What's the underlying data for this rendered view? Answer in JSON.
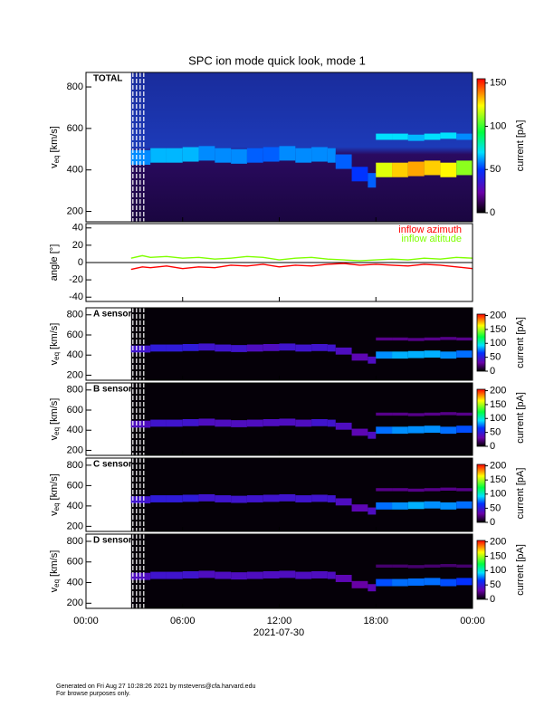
{
  "title": "SPC ion mode quick look, mode 1",
  "xaxis": {
    "label": "2021-07-30",
    "xlim": [
      0,
      24
    ],
    "xticks": [
      {
        "value": 0,
        "label": "00:00"
      },
      {
        "value": 6,
        "label": "06:00"
      },
      {
        "value": 12,
        "label": "12:00"
      },
      {
        "value": 18,
        "label": "18:00"
      },
      {
        "value": 24,
        "label": "00:00"
      }
    ]
  },
  "chart_data": [
    {
      "type": "spectrogram",
      "name": "TOTAL",
      "ylabel": {
        "main": "v",
        "sub": "eq",
        "unit": "[km/s]"
      },
      "ylim": [
        150,
        870
      ],
      "yticks": [
        200,
        400,
        600,
        800
      ],
      "colorbar_label": "current [pA]",
      "clim": [
        0,
        155
      ],
      "cticks": [
        0,
        50,
        100,
        150
      ],
      "x": [
        2.8,
        4,
        5,
        6,
        7,
        8,
        9,
        10,
        11,
        12,
        13,
        14,
        15,
        15.5,
        16.5,
        17.5,
        18,
        19,
        20,
        21,
        22,
        23
      ],
      "peak_speed": [
        460,
        470,
        470,
        475,
        480,
        470,
        465,
        470,
        475,
        480,
        470,
        475,
        470,
        440,
        380,
        350,
        400,
        400,
        405,
        410,
        400,
        410
      ],
      "peak_current": [
        60,
        65,
        65,
        65,
        60,
        60,
        60,
        55,
        55,
        60,
        60,
        60,
        60,
        55,
        50,
        55,
        120,
        130,
        135,
        130,
        125,
        110
      ],
      "secondary_speed": [
        null,
        null,
        null,
        null,
        null,
        null,
        null,
        null,
        null,
        null,
        null,
        null,
        null,
        null,
        null,
        null,
        560,
        560,
        555,
        560,
        565,
        560
      ],
      "secondary_current": [
        null,
        null,
        null,
        null,
        null,
        null,
        null,
        null,
        null,
        null,
        null,
        null,
        null,
        null,
        null,
        null,
        70,
        70,
        65,
        70,
        70,
        60
      ]
    },
    {
      "type": "line",
      "ylabel": "angle [°]",
      "ylim": [
        -45,
        45
      ],
      "yticks": [
        -40,
        -20,
        0,
        20,
        40
      ],
      "x": [
        2.8,
        3.5,
        4,
        5,
        6,
        7,
        8,
        9,
        10,
        11,
        12,
        13,
        14,
        15,
        16,
        17,
        18,
        19,
        20,
        21,
        22,
        23,
        24
      ],
      "series": [
        {
          "name": "inflow azimuth",
          "color": "#ff0000",
          "values": [
            -8,
            -5,
            -6,
            -4,
            -7,
            -5,
            -6,
            -3,
            -4,
            -2,
            -5,
            -3,
            -4,
            -2,
            -1,
            -3,
            -2,
            -3,
            -4,
            -2,
            -3,
            -5,
            -7
          ]
        },
        {
          "name": "inflow altitude",
          "color": "#7fff00",
          "values": [
            5,
            8,
            6,
            7,
            5,
            6,
            4,
            5,
            7,
            6,
            3,
            5,
            6,
            4,
            3,
            2,
            3,
            4,
            3,
            5,
            4,
            6,
            5
          ]
        }
      ]
    },
    {
      "type": "spectrogram",
      "name": "A sensor",
      "ylabel": {
        "main": "v",
        "sub": "eq",
        "unit": "[km/s]"
      },
      "ylim": [
        150,
        870
      ],
      "yticks": [
        200,
        400,
        600,
        800
      ],
      "colorbar_label": "current [pA]",
      "clim": [
        0,
        205
      ],
      "cticks": [
        0,
        50,
        100,
        150,
        200
      ],
      "x": [
        2.8,
        4,
        5,
        6,
        7,
        8,
        9,
        10,
        11,
        12,
        13,
        14,
        15,
        15.5,
        16.5,
        17.5,
        18,
        19,
        20,
        21,
        22,
        23
      ],
      "peak_speed": [
        460,
        470,
        470,
        475,
        480,
        470,
        465,
        470,
        475,
        480,
        470,
        475,
        470,
        440,
        380,
        350,
        400,
        400,
        405,
        410,
        400,
        410
      ],
      "peak_current": [
        45,
        50,
        50,
        50,
        45,
        45,
        45,
        40,
        40,
        45,
        45,
        45,
        45,
        40,
        35,
        40,
        80,
        85,
        85,
        85,
        80,
        75
      ],
      "secondary_speed": [
        null,
        null,
        null,
        null,
        null,
        null,
        null,
        null,
        null,
        null,
        null,
        null,
        null,
        null,
        null,
        null,
        560,
        560,
        555,
        560,
        565,
        560
      ],
      "secondary_current": [
        null,
        null,
        null,
        null,
        null,
        null,
        null,
        null,
        null,
        null,
        null,
        null,
        null,
        null,
        null,
        null,
        25,
        25,
        25,
        25,
        25,
        25
      ]
    },
    {
      "type": "spectrogram",
      "name": "B sensor",
      "ylabel": {
        "main": "v",
        "sub": "eq",
        "unit": "[km/s]"
      },
      "ylim": [
        150,
        870
      ],
      "yticks": [
        200,
        400,
        600,
        800
      ],
      "colorbar_label": "current [pA]",
      "clim": [
        0,
        205
      ],
      "cticks": [
        0,
        50,
        100,
        150,
        200
      ],
      "x": [
        2.8,
        4,
        5,
        6,
        7,
        8,
        9,
        10,
        11,
        12,
        13,
        14,
        15,
        15.5,
        16.5,
        17.5,
        18,
        19,
        20,
        21,
        22,
        23
      ],
      "peak_speed": [
        460,
        470,
        470,
        475,
        480,
        470,
        465,
        470,
        475,
        480,
        470,
        475,
        470,
        440,
        380,
        350,
        400,
        400,
        405,
        410,
        400,
        410
      ],
      "peak_current": [
        40,
        45,
        45,
        45,
        40,
        40,
        40,
        40,
        40,
        40,
        40,
        45,
        45,
        40,
        35,
        40,
        75,
        80,
        80,
        80,
        75,
        70
      ],
      "secondary_speed": [
        null,
        null,
        null,
        null,
        null,
        null,
        null,
        null,
        null,
        null,
        null,
        null,
        null,
        null,
        null,
        null,
        560,
        560,
        555,
        560,
        565,
        560
      ],
      "secondary_current": [
        null,
        null,
        null,
        null,
        null,
        null,
        null,
        null,
        null,
        null,
        null,
        null,
        null,
        null,
        null,
        null,
        25,
        25,
        25,
        25,
        25,
        25
      ]
    },
    {
      "type": "spectrogram",
      "name": "C sensor",
      "ylabel": {
        "main": "v",
        "sub": "eq",
        "unit": "[km/s]"
      },
      "ylim": [
        150,
        870
      ],
      "yticks": [
        200,
        400,
        600,
        800
      ],
      "colorbar_label": "current [pA]",
      "clim": [
        0,
        205
      ],
      "cticks": [
        0,
        50,
        100,
        150,
        200
      ],
      "x": [
        2.8,
        4,
        5,
        6,
        7,
        8,
        9,
        10,
        11,
        12,
        13,
        14,
        15,
        15.5,
        16.5,
        17.5,
        18,
        19,
        20,
        21,
        22,
        23
      ],
      "peak_speed": [
        460,
        470,
        470,
        475,
        480,
        470,
        465,
        470,
        475,
        480,
        470,
        475,
        470,
        440,
        380,
        350,
        400,
        400,
        405,
        410,
        400,
        410
      ],
      "peak_current": [
        45,
        50,
        50,
        50,
        45,
        45,
        45,
        45,
        45,
        45,
        45,
        45,
        45,
        40,
        35,
        40,
        75,
        80,
        85,
        80,
        80,
        75
      ],
      "secondary_speed": [
        null,
        null,
        null,
        null,
        null,
        null,
        null,
        null,
        null,
        null,
        null,
        null,
        null,
        null,
        null,
        null,
        560,
        560,
        555,
        560,
        565,
        560
      ],
      "secondary_current": [
        null,
        null,
        null,
        null,
        null,
        null,
        null,
        null,
        null,
        null,
        null,
        null,
        null,
        null,
        null,
        null,
        25,
        25,
        25,
        25,
        25,
        25
      ]
    },
    {
      "type": "spectrogram",
      "name": "D sensor",
      "ylabel": {
        "main": "v",
        "sub": "eq",
        "unit": "[km/s]"
      },
      "ylim": [
        150,
        870
      ],
      "yticks": [
        200,
        400,
        600,
        800
      ],
      "colorbar_label": "current [pA]",
      "clim": [
        0,
        205
      ],
      "cticks": [
        0,
        50,
        100,
        150,
        200
      ],
      "x": [
        2.8,
        4,
        5,
        6,
        7,
        8,
        9,
        10,
        11,
        12,
        13,
        14,
        15,
        15.5,
        16.5,
        17.5,
        18,
        19,
        20,
        21,
        22,
        23
      ],
      "peak_speed": [
        460,
        470,
        470,
        475,
        480,
        470,
        465,
        470,
        475,
        480,
        470,
        475,
        470,
        440,
        380,
        350,
        400,
        400,
        405,
        410,
        400,
        410
      ],
      "peak_current": [
        40,
        45,
        45,
        45,
        40,
        40,
        40,
        40,
        40,
        40,
        40,
        40,
        40,
        35,
        30,
        35,
        70,
        75,
        75,
        75,
        70,
        65
      ],
      "secondary_speed": [
        null,
        null,
        null,
        null,
        null,
        null,
        null,
        null,
        null,
        null,
        null,
        null,
        null,
        null,
        null,
        null,
        560,
        560,
        555,
        560,
        565,
        560
      ],
      "secondary_current": [
        null,
        null,
        null,
        null,
        null,
        null,
        null,
        null,
        null,
        null,
        null,
        null,
        null,
        null,
        null,
        null,
        20,
        20,
        20,
        20,
        20,
        20
      ]
    }
  ],
  "footer": [
    "Generated on Fri Aug 27 10:28:26 2021 by mstevens@cfa.harvard.edu",
    "For browse purposes only."
  ]
}
